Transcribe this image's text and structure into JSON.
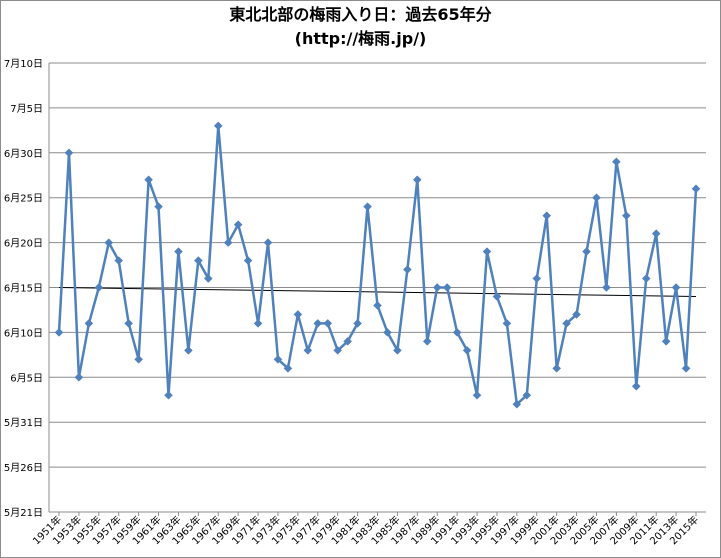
{
  "chart_data": {
    "type": "line",
    "title": "東北北部の梅雨入り日：過去65年分",
    "subtitle": "(http://梅雨.jp/)",
    "y_tick_labels": [
      "7月10日",
      "7月5日",
      "6月30日",
      "6月25日",
      "6月20日",
      "6月15日",
      "6月10日",
      "6月5日",
      "5月31日",
      "5月26日",
      "5月21日"
    ],
    "ylim": [
      "05-21",
      "07-10"
    ],
    "grid": true,
    "x_tick_labels": [
      "1951年",
      "1953年",
      "1955年",
      "1957年",
      "1959年",
      "1961年",
      "1963年",
      "1965年",
      "1967年",
      "1969年",
      "1971年",
      "1973年",
      "1975年",
      "1977年",
      "1979年",
      "1981年",
      "1983年",
      "1985年",
      "1987年",
      "1989年",
      "1991年",
      "1993年",
      "1995年",
      "1997年",
      "1999年",
      "2001年",
      "2003年",
      "2005年",
      "2007年",
      "2009年",
      "2011年",
      "2013年",
      "2015年"
    ],
    "series": [
      {
        "color": "#4f81bd",
        "x": [
          1951,
          1952,
          1953,
          1954,
          1955,
          1956,
          1957,
          1958,
          1959,
          1960,
          1961,
          1962,
          1963,
          1964,
          1965,
          1966,
          1967,
          1968,
          1969,
          1970,
          1971,
          1972,
          1973,
          1974,
          1975,
          1976,
          1977,
          1978,
          1979,
          1980,
          1981,
          1982,
          1983,
          1984,
          1985,
          1986,
          1987,
          1988,
          1989,
          1990,
          1991,
          1992,
          1993,
          1994,
          1995,
          1996,
          1997,
          1998,
          1999,
          2000,
          2001,
          2002,
          2003,
          2004,
          2005,
          2006,
          2007,
          2008,
          2009,
          2010,
          2011,
          2012,
          2013,
          2014,
          2015
        ],
        "values": [
          "06-10",
          "06-30",
          "06-05",
          "06-11",
          "06-15",
          "06-20",
          "06-18",
          "06-11",
          "06-07",
          "06-27",
          "06-24",
          "06-03",
          "06-19",
          "06-08",
          "06-18",
          "06-16",
          "07-03",
          "06-20",
          "06-22",
          "06-18",
          "06-11",
          "06-20",
          "06-07",
          "06-06",
          "06-12",
          "06-08",
          "06-11",
          "06-11",
          "06-08",
          "06-09",
          "06-11",
          "06-24",
          "06-13",
          "06-10",
          "06-08",
          "06-17",
          "06-27",
          "06-09",
          "06-15",
          "06-15",
          "06-10",
          "06-08",
          "06-03",
          "06-19",
          "06-14",
          "06-11",
          "06-02",
          "06-03",
          "06-16",
          "06-23",
          "06-06",
          "06-11",
          "06-12",
          "06-19",
          "06-25",
          "06-15",
          "06-29",
          "06-23",
          "06-04",
          "06-16",
          "06-21",
          "06-09",
          "06-15",
          "06-06",
          "06-26"
        ]
      },
      {
        "type": "trendline",
        "color": "#000000",
        "x": [
          1951,
          2015
        ],
        "values": [
          "06-15",
          "06-14"
        ]
      }
    ]
  }
}
